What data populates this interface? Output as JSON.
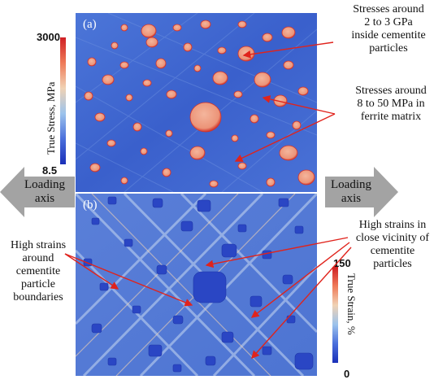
{
  "panels": {
    "a": {
      "label": "(a)"
    },
    "b": {
      "label": "(b)"
    }
  },
  "stress_colorbar": {
    "title": "True Stress, MPa",
    "max": "3000",
    "min": "8.5",
    "colors": [
      "#1a2fb8",
      "#4a6fdc",
      "#9cc3ec",
      "#f0d2b4",
      "#ef7a58",
      "#cf1f24"
    ]
  },
  "strain_colorbar": {
    "title": "True Strain, %",
    "max": "150",
    "min": "0",
    "colors": [
      "#1a2fb8",
      "#4a6fdc",
      "#9cc3ec",
      "#f0d2b4",
      "#ef7a58",
      "#cf1f24"
    ]
  },
  "annotations": {
    "stress_cementite": [
      "Stresses around",
      "2 to 3 GPa",
      "inside cementite",
      "particles"
    ],
    "stress_ferrite": [
      "Stresses around",
      "8 to 50 MPa in",
      "ferrite matrix"
    ],
    "strain_vicinity": [
      "High strains in",
      "close vicinity of",
      "cementite",
      "particles"
    ],
    "strain_boundaries": [
      "High strains",
      "around",
      "cementite",
      "particle",
      "boundaries"
    ]
  },
  "loading_axis": {
    "left": [
      "Loading",
      "axis"
    ],
    "right": [
      "Loading",
      "axis"
    ]
  },
  "colors": {
    "matrix_blue": "#3b62cf",
    "particle_orange": "#ee9a80",
    "particle_edge": "#d2322a",
    "arrow_red": "#e0231c",
    "arrow_gray": "#a3a3a3"
  }
}
